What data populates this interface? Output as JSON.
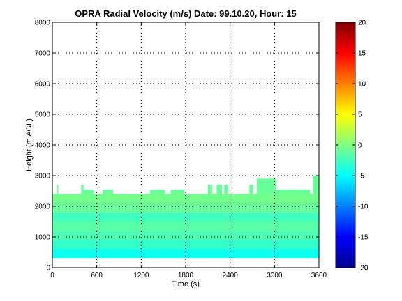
{
  "chart_data": {
    "type": "heatmap",
    "title": "OPRA Radial Velocity (m/s)  Date: 99.10.20, Hour: 15",
    "xlabel": "Time (s)",
    "ylabel": "Height (m AGL)",
    "xlim": [
      0,
      3600
    ],
    "ylim": [
      0,
      8000
    ],
    "xticks": [
      0,
      600,
      1200,
      1800,
      2400,
      3000,
      3600
    ],
    "xtick_labels": [
      "0",
      "600",
      "1200",
      "1800",
      "2400",
      "3000",
      "3600"
    ],
    "yticks": [
      0,
      1000,
      2000,
      3000,
      4000,
      5000,
      6000,
      7000,
      8000
    ],
    "ytick_labels": [
      "0",
      "1000",
      "2000",
      "3000",
      "4000",
      "5000",
      "6000",
      "7000",
      "8000"
    ],
    "grid": true,
    "colormap": "jet",
    "colorbar": {
      "range": [
        -20,
        20
      ],
      "ticks": [
        -20,
        -15,
        -10,
        -5,
        0,
        5,
        10,
        15,
        20
      ],
      "tick_labels": [
        "-20",
        "-15",
        "-10",
        "-5",
        "0",
        "5",
        "10",
        "15",
        "20"
      ]
    },
    "data_region": {
      "time_range_s": [
        0,
        3600
      ],
      "bottom_height_m": 300,
      "main_top_height_m": 2400,
      "height_bands": [
        {
          "from_m": 300,
          "to_m": 600,
          "velocity_ms": -4.5
        },
        {
          "from_m": 600,
          "to_m": 900,
          "velocity_ms": -3.0
        },
        {
          "from_m": 900,
          "to_m": 1200,
          "velocity_ms": -2.0
        },
        {
          "from_m": 1200,
          "to_m": 1500,
          "velocity_ms": -1.5
        },
        {
          "from_m": 1500,
          "to_m": 1800,
          "velocity_ms": -2.5
        },
        {
          "from_m": 1800,
          "to_m": 2100,
          "velocity_ms": -1.0
        },
        {
          "from_m": 2100,
          "to_m": 2400,
          "velocity_ms": -0.5
        }
      ],
      "extensions": [
        {
          "t0": 0,
          "t1": 60,
          "top_m": 2400,
          "velocity_ms": -1.0
        },
        {
          "t0": 60,
          "t1": 80,
          "top_m": 2700,
          "velocity_ms": -1.0
        },
        {
          "t0": 390,
          "t1": 420,
          "top_m": 2700,
          "velocity_ms": -1.0
        },
        {
          "t0": 420,
          "t1": 560,
          "top_m": 2550,
          "velocity_ms": -1.0
        },
        {
          "t0": 680,
          "t1": 820,
          "top_m": 2550,
          "velocity_ms": -1.0
        },
        {
          "t0": 1320,
          "t1": 1520,
          "top_m": 2550,
          "velocity_ms": -1.0
        },
        {
          "t0": 1600,
          "t1": 1780,
          "top_m": 2550,
          "velocity_ms": -1.0
        },
        {
          "t0": 2100,
          "t1": 2160,
          "top_m": 2700,
          "velocity_ms": -1.0
        },
        {
          "t0": 2220,
          "t1": 2290,
          "top_m": 2700,
          "velocity_ms": -1.0
        },
        {
          "t0": 2320,
          "t1": 2370,
          "top_m": 2700,
          "velocity_ms": -1.0
        },
        {
          "t0": 2660,
          "t1": 2710,
          "top_m": 2700,
          "velocity_ms": -1.0
        },
        {
          "t0": 2760,
          "t1": 3020,
          "top_m": 2900,
          "velocity_ms": -1.0
        },
        {
          "t0": 3020,
          "t1": 3480,
          "top_m": 2550,
          "velocity_ms": -1.0
        },
        {
          "t0": 3520,
          "t1": 3600,
          "top_m": 3000,
          "velocity_ms": -1.0
        }
      ]
    }
  }
}
